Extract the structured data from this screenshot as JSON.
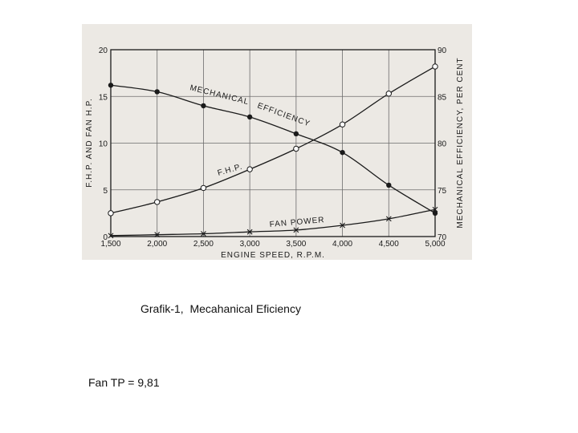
{
  "caption": "Grafik-1,  Mecahanical Eficiency",
  "note": "Fan TP = 9,81",
  "chart_data": {
    "type": "line",
    "xlabel": "ENGINE  SPEED, R.P.M.",
    "ylabel_left": "F.H.P. AND  FAN  H.P.",
    "ylabel_right": "MECHANICAL  EFFICIENCY,  PER  CENT",
    "x_ticks": [
      1500,
      2000,
      2500,
      3000,
      3500,
      4000,
      4500,
      5000
    ],
    "x_tick_labels": [
      "1,500",
      "2,000",
      "2,500",
      "3,000",
      "3,500",
      "4,000",
      "4,500",
      "5,000"
    ],
    "xlim": [
      1500,
      5000
    ],
    "ylim_left": [
      0,
      20
    ],
    "y_ticks_left": [
      0,
      5,
      10,
      15,
      20
    ],
    "y_tick_labels_left": [
      "0",
      "5",
      "10",
      "15",
      "20"
    ],
    "ylim_right": [
      70,
      90
    ],
    "y_ticks_right": [
      70,
      75,
      80,
      85,
      90
    ],
    "y_tick_labels_right": [
      "70",
      "75",
      "80",
      "85",
      "90"
    ],
    "grid": true,
    "series": [
      {
        "name": "MECHANICAL  EFFICIENCY",
        "axis": "right",
        "marker": "filled-circle",
        "x": [
          1500,
          2000,
          2500,
          3000,
          3500,
          4000,
          4500,
          5000
        ],
        "y": [
          86.2,
          85.5,
          84.0,
          82.8,
          81.0,
          79.0,
          75.5,
          72.5
        ]
      },
      {
        "name": "F.H.P.",
        "axis": "left",
        "marker": "open-circle",
        "x": [
          1500,
          2000,
          2500,
          3000,
          3500,
          4000,
          4500,
          5000
        ],
        "y": [
          2.5,
          3.7,
          5.2,
          7.2,
          9.4,
          12.0,
          15.3,
          18.2
        ]
      },
      {
        "name": "FAN  POWER",
        "axis": "left",
        "marker": "x",
        "x": [
          1500,
          2000,
          2500,
          3000,
          3500,
          4000,
          4500,
          5000
        ],
        "y": [
          0.1,
          0.2,
          0.3,
          0.5,
          0.7,
          1.2,
          1.9,
          2.9
        ]
      }
    ],
    "curve_labels": [
      "MECHANICAL",
      "EFFICIENCY",
      "F.H.P.",
      "FAN  POWER"
    ]
  }
}
